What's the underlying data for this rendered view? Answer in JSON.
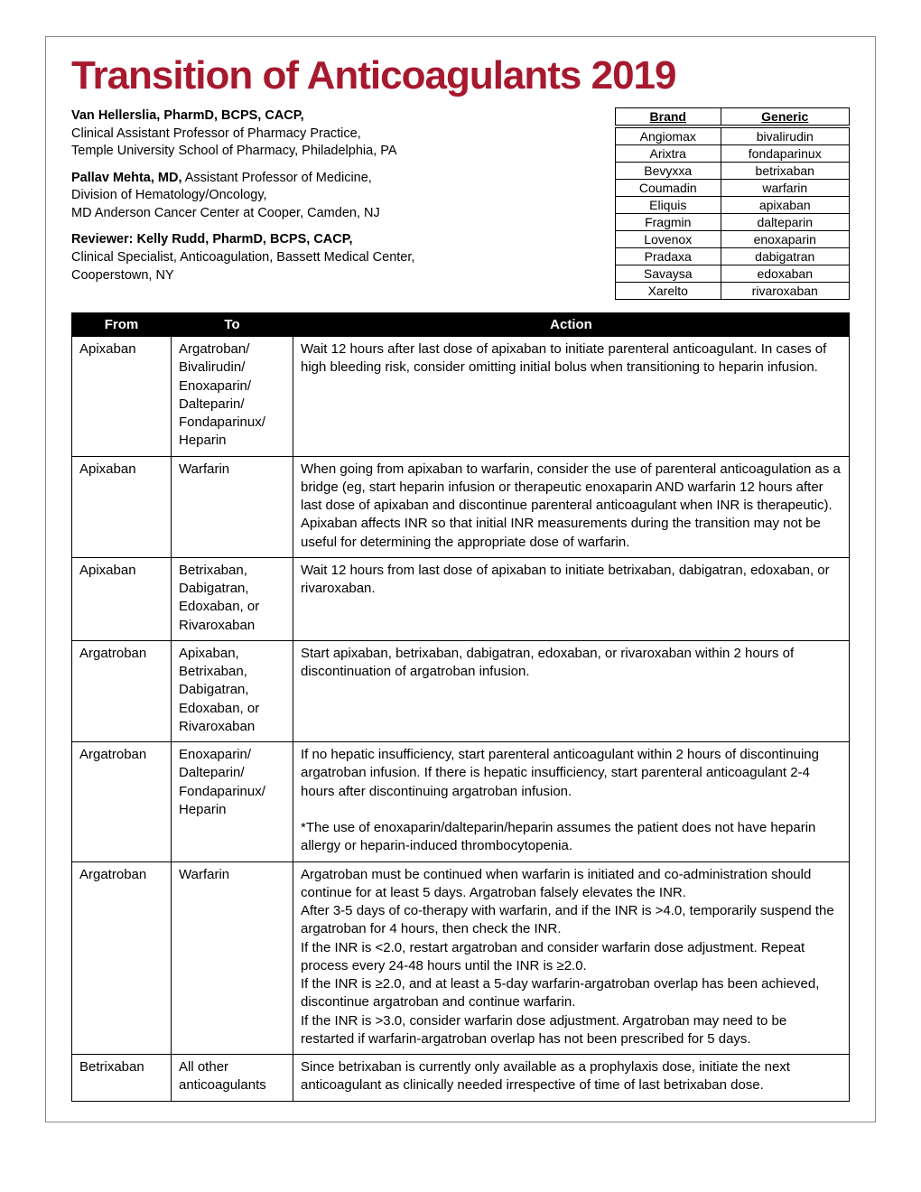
{
  "title": {
    "text": "Transition of Anticoagulants 2019",
    "color": "#a6192e"
  },
  "authors": [
    {
      "bold": "Van Hellerslia, PharmD, BCPS, CACP,",
      "rest": " ",
      "lines": [
        "Clinical Assistant Professor of Pharmacy Practice,",
        "Temple University School of Pharmacy, Philadelphia, PA"
      ]
    },
    {
      "bold": "Pallav Mehta, MD,",
      "rest": " Assistant Professor of Medicine,",
      "lines": [
        "Division of Hematology/Oncology,",
        "MD Anderson Cancer Center at Cooper, Camden, NJ"
      ]
    },
    {
      "bold": "Reviewer: Kelly Rudd, PharmD, BCPS, CACP,",
      "rest": " ",
      "lines": [
        "Clinical Specialist, Anticoagulation, Bassett Medical Center,",
        "Cooperstown, NY"
      ]
    }
  ],
  "brand_table": {
    "headers": {
      "brand": "Brand",
      "generic": "Generic"
    },
    "rows": [
      {
        "brand": "Angiomax",
        "generic": "bivalirudin"
      },
      {
        "brand": "Arixtra",
        "generic": "fondaparinux"
      },
      {
        "brand": "Bevyxxa",
        "generic": "betrixaban"
      },
      {
        "brand": "Coumadin",
        "generic": "warfarin"
      },
      {
        "brand": "Eliquis",
        "generic": "apixaban"
      },
      {
        "brand": "Fragmin",
        "generic": "dalteparin"
      },
      {
        "brand": "Lovenox",
        "generic": "enoxaparin"
      },
      {
        "brand": "Pradaxa",
        "generic": "dabigatran"
      },
      {
        "brand": "Savaysa",
        "generic": "edoxaban"
      },
      {
        "brand": "Xarelto",
        "generic": "rivaroxaban"
      }
    ]
  },
  "main_table": {
    "headers": {
      "from": "From",
      "to": "To",
      "action": "Action"
    },
    "rows": [
      {
        "from": "Apixaban",
        "to": "Argatroban/\nBivalirudin/\nEnoxaparin/\nDalteparin/\nFondaparinux/\nHeparin",
        "action": "Wait 12 hours after last dose of apixaban to initiate parenteral anticoagulant. In cases of high bleeding risk, consider omitting initial bolus when transitioning to heparin infusion."
      },
      {
        "from": "Apixaban",
        "to": "Warfarin",
        "action": "When going from apixaban to warfarin, consider the use of parenteral anticoagulation as a bridge (eg, start heparin infusion or therapeutic enoxaparin AND warfarin 12 hours after last dose of apixaban and discontinue parenteral anticoagulant when INR is therapeutic). Apixaban affects INR so that initial INR measurements during the transition may not be useful for determining the appropriate dose of warfarin."
      },
      {
        "from": "Apixaban",
        "to": "Betrixaban,\nDabigatran,\nEdoxaban, or\nRivaroxaban",
        "action": "Wait 12 hours from last dose of apixaban to initiate betrixaban, dabigatran, edoxaban, or rivaroxaban."
      },
      {
        "from": "Argatroban",
        "to": "Apixaban,\nBetrixaban,\nDabigatran,\nEdoxaban, or\nRivaroxaban",
        "action": "Start apixaban, betrixaban, dabigatran, edoxaban, or rivaroxaban within 2 hours of discontinuation of argatroban infusion."
      },
      {
        "from": "Argatroban",
        "to": "Enoxaparin/\nDalteparin/\nFondaparinux/\nHeparin",
        "action": "If no hepatic insufficiency, start parenteral anticoagulant within 2 hours of discontinuing argatroban infusion. If there is hepatic insufficiency, start parenteral anticoagulant 2-4 hours after discontinuing argatroban infusion.\n\n*The use of enoxaparin/dalteparin/heparin assumes the patient does not have heparin allergy or heparin-induced thrombocytopenia."
      },
      {
        "from": "Argatroban",
        "to": "Warfarin",
        "action": "Argatroban must be continued when warfarin is initiated and co-administration should continue for at least 5 days. Argatroban falsely elevates the INR.\nAfter 3-5 days of co-therapy with warfarin, and if the INR is >4.0, temporarily suspend the argatroban for 4 hours, then check the INR.\nIf the INR is <2.0, restart argatroban and consider warfarin dose adjustment. Repeat process every 24-48 hours until the INR is ≥2.0.\nIf the INR is ≥2.0, and at least a 5-day warfarin-argatroban overlap has been achieved, discontinue argatroban and continue warfarin.\nIf the INR is >3.0, consider warfarin dose adjustment. Argatroban may need to be restarted if warfarin-argatroban overlap has not been prescribed for 5 days."
      },
      {
        "from": "Betrixaban",
        "to": "All other\nanticoagulants",
        "action": "Since betrixaban is currently only available as a prophylaxis dose, initiate the next anticoagulant as clinically needed irrespective of time of last betrixaban dose."
      }
    ]
  }
}
